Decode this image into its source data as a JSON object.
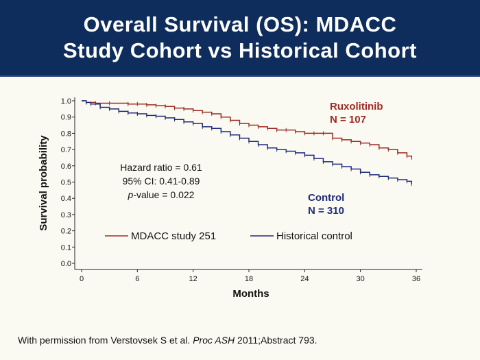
{
  "slide": {
    "title_line1": "Overall Survival (OS): MDACC",
    "title_line2": "Study Cohort vs Historical Cohort",
    "footer_prefix": "With permission from Verstovsek S et al. ",
    "footer_journal": "Proc ASH",
    "footer_suffix": " 2011;Abstract 793."
  },
  "chart_data": {
    "type": "line",
    "subtype": "kaplan-meier",
    "xlabel": "Months",
    "ylabel": "Survival probability",
    "xlim": [
      0,
      36
    ],
    "ylim": [
      0,
      1.0
    ],
    "xticks": [
      "0",
      "6",
      "12",
      "18",
      "24",
      "30",
      "36"
    ],
    "yticks": [
      "0.0",
      "0.1",
      "0.2",
      "0.3",
      "0.4",
      "0.5",
      "0.6",
      "0.7",
      "0.8",
      "0.9",
      "1.0"
    ],
    "annotations": {
      "stats": [
        "Hazard ratio = 0.61",
        "95% CI: 0.41-0.89",
        "p-value = 0.022"
      ],
      "rux_name": "Ruxolitinib",
      "rux_n": "N = 107",
      "ctrl_name": "Control",
      "ctrl_n": "N = 310"
    },
    "legend": [
      "MDACC study 251",
      "Historical control"
    ],
    "colors": {
      "ruxolitinib": "#9b2a22",
      "control": "#1e2a78"
    },
    "series": [
      {
        "name": "MDACC study 251",
        "color": "#9b2a22",
        "x": [
          0,
          0.5,
          1.5,
          3,
          5,
          6,
          7,
          8,
          9,
          10,
          11,
          12,
          13,
          14,
          15,
          16,
          17,
          18,
          19,
          20,
          21,
          22,
          23,
          24,
          25,
          26,
          27,
          28,
          29,
          30,
          31,
          32,
          33,
          34,
          35,
          35.5
        ],
        "y": [
          1.0,
          0.99,
          0.985,
          0.985,
          0.98,
          0.98,
          0.975,
          0.97,
          0.965,
          0.955,
          0.95,
          0.94,
          0.93,
          0.92,
          0.9,
          0.88,
          0.86,
          0.85,
          0.84,
          0.83,
          0.82,
          0.82,
          0.81,
          0.8,
          0.8,
          0.8,
          0.77,
          0.76,
          0.75,
          0.74,
          0.73,
          0.71,
          0.7,
          0.68,
          0.66,
          0.65
        ]
      },
      {
        "name": "Historical control",
        "color": "#1e2a78",
        "x": [
          0,
          0.5,
          1,
          2,
          3,
          4,
          5,
          6,
          7,
          8,
          9,
          10,
          11,
          12,
          13,
          14,
          15,
          16,
          17,
          18,
          19,
          20,
          21,
          22,
          23,
          24,
          25,
          26,
          27,
          28,
          29,
          30,
          31,
          32,
          33,
          34,
          35,
          35.5
        ],
        "y": [
          1.0,
          0.99,
          0.98,
          0.96,
          0.95,
          0.935,
          0.925,
          0.92,
          0.91,
          0.905,
          0.895,
          0.885,
          0.87,
          0.86,
          0.84,
          0.83,
          0.81,
          0.79,
          0.77,
          0.75,
          0.73,
          0.71,
          0.7,
          0.69,
          0.68,
          0.665,
          0.645,
          0.625,
          0.61,
          0.595,
          0.58,
          0.56,
          0.545,
          0.535,
          0.525,
          0.515,
          0.505,
          0.49
        ]
      }
    ]
  }
}
